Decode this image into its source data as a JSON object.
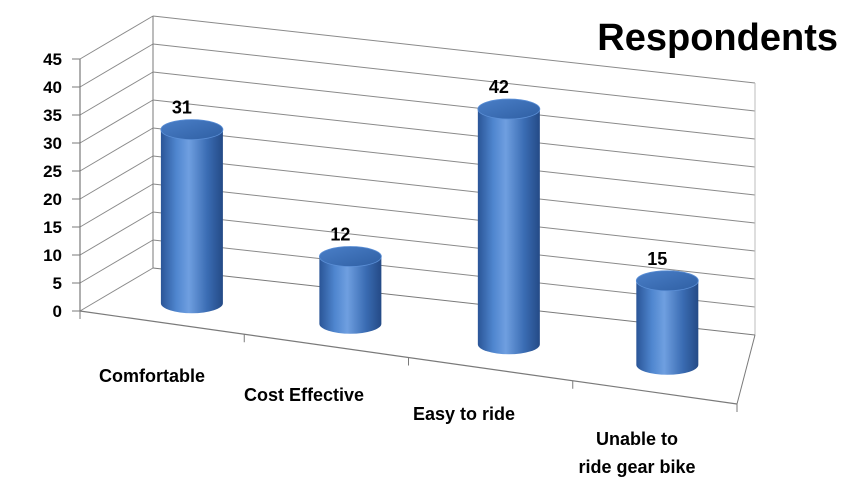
{
  "chart_data": {
    "type": "bar",
    "title": "Respondents",
    "categories": [
      "Comfortable",
      "Cost Effective",
      "Easy to ride",
      "Unable to ride gear bike"
    ],
    "category_lines": [
      [
        "Comfortable"
      ],
      [
        "Cost Effective"
      ],
      [
        "Easy to ride"
      ],
      [
        "Unable to",
        "ride gear bike"
      ]
    ],
    "values": [
      31,
      12,
      42,
      15
    ],
    "data_labels": [
      "31",
      "12",
      "42",
      "15"
    ],
    "ylim": [
      0,
      45
    ],
    "yticks": [
      "0",
      "5",
      "10",
      "15",
      "20",
      "25",
      "30",
      "35",
      "40",
      "45"
    ],
    "xlabel": "",
    "ylabel": "",
    "grid": true,
    "legend": "none",
    "shape": "3d-cylinder",
    "bar_color": "#3A6FB7"
  }
}
